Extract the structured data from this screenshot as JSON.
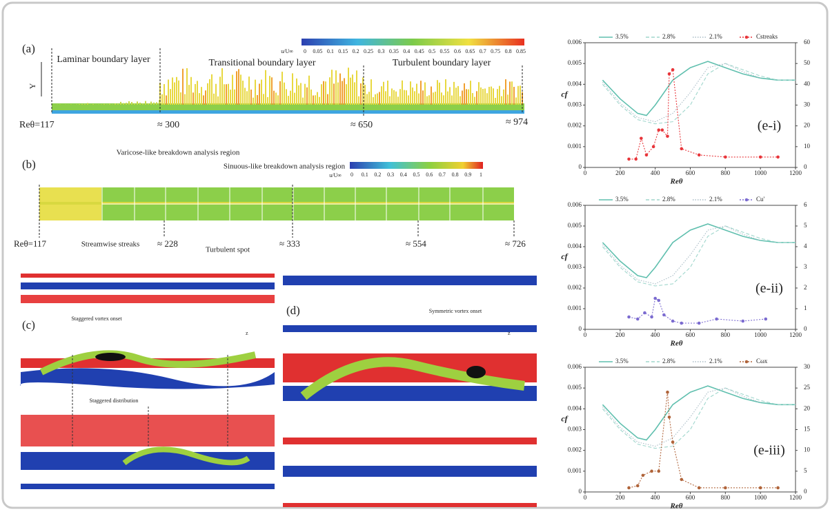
{
  "panel_a": {
    "label": "(a)",
    "axis_label": "Y",
    "regions": [
      "Laminar boundary layer",
      "Transitional boundary layer",
      "Turbulent boundary layer"
    ],
    "colorbar_label": "u/U∞",
    "colorbar_ticks": [
      0,
      0.05,
      0.1,
      0.15,
      0.2,
      0.25,
      0.3,
      0.35,
      0.4,
      0.45,
      0.5,
      0.55,
      0.6,
      0.65,
      0.7,
      0.75,
      0.8,
      0.85
    ],
    "stations": [
      "Reθ=117",
      "≈ 300",
      "≈ 650",
      "≈ 974"
    ]
  },
  "panel_b": {
    "label": "(b)",
    "annotations": [
      "Varicose-like breakdown analysis region",
      "Sinuous-like breakdown analysis region",
      "Streamwise streaks",
      "Turbulent spot"
    ],
    "colorbar_label": "u/U∞",
    "colorbar_ticks": [
      0,
      0.1,
      0.2,
      0.3,
      0.4,
      0.5,
      0.6,
      0.7,
      0.8,
      0.9,
      1
    ],
    "stations": [
      "Reθ=117",
      "≈ 228",
      "≈ 333",
      "≈ 554",
      "≈ 726"
    ]
  },
  "panel_c": {
    "label": "(c)",
    "annotations": [
      "Staggered vortex onset",
      "Staggered distribution"
    ],
    "axis_label": "z"
  },
  "panel_d": {
    "label": "(d)",
    "annotations": [
      "Symmetric vortex onset"
    ],
    "axis_label": "z"
  },
  "charts": [
    {
      "type": "line",
      "label": "(e-i)",
      "xlabel": "Reθ",
      "ylabel": "cf",
      "xlim": [
        0,
        1200
      ],
      "xticks": [
        0,
        200,
        400,
        600,
        800,
        1000,
        1200
      ],
      "ylim": [
        0,
        0.006
      ],
      "yticks": [
        0,
        0.001,
        0.002,
        0.003,
        0.004,
        0.005,
        0.006
      ],
      "y2lim": [
        0,
        60
      ],
      "y2ticks": [
        0,
        10,
        20,
        30,
        40,
        50,
        60
      ],
      "series": [
        {
          "name": "3.5%",
          "color": "#5fbfae",
          "style": "solid",
          "x": [
            100,
            200,
            300,
            350,
            400,
            500,
            600,
            700,
            800,
            900,
            1000,
            1100,
            1200
          ],
          "values": [
            0.0042,
            0.0033,
            0.0026,
            0.0025,
            0.003,
            0.0042,
            0.0048,
            0.0051,
            0.0048,
            0.0045,
            0.0043,
            0.0042,
            0.0042
          ]
        },
        {
          "name": "2.8%",
          "color": "#9fd6cc",
          "style": "dashed",
          "x": [
            100,
            200,
            300,
            400,
            500,
            600,
            700,
            800,
            900,
            1000,
            1100,
            1200
          ],
          "values": [
            0.004,
            0.003,
            0.0023,
            0.0021,
            0.0022,
            0.003,
            0.0045,
            0.005,
            0.0047,
            0.0044,
            0.0042,
            0.0042
          ]
        },
        {
          "name": "2.1%",
          "color": "#a9bcc6",
          "style": "dotted",
          "x": [
            100,
            200,
            300,
            400,
            500,
            600,
            700,
            800,
            900,
            1000
          ],
          "values": [
            0.0041,
            0.0031,
            0.0024,
            0.0022,
            0.0026,
            0.0036,
            0.0048,
            0.005,
            0.0046,
            0.0043
          ]
        },
        {
          "name": "Cstreaks",
          "color": "#e8353a",
          "style": "marker",
          "axis": "y2",
          "x": [
            250,
            290,
            320,
            350,
            390,
            420,
            440,
            470,
            480,
            500,
            550,
            650,
            800,
            1000,
            1100
          ],
          "values": [
            4,
            4,
            14,
            6,
            10,
            18,
            18,
            15,
            45,
            47,
            9,
            6,
            5,
            5,
            5
          ]
        }
      ]
    },
    {
      "type": "line",
      "label": "(e-ii)",
      "xlabel": "Reθ",
      "ylabel": "cf",
      "xlim": [
        0,
        1200
      ],
      "xticks": [
        0,
        200,
        400,
        600,
        800,
        1000,
        1200
      ],
      "ylim": [
        0,
        0.006
      ],
      "yticks": [
        0,
        0.001,
        0.002,
        0.003,
        0.004,
        0.005,
        0.006
      ],
      "y2lim": [
        0,
        6
      ],
      "y2ticks": [
        0,
        1,
        2,
        3,
        4,
        5,
        6
      ],
      "series": [
        {
          "name": "3.5%",
          "color": "#5fbfae",
          "style": "solid",
          "x": [
            100,
            200,
            300,
            350,
            400,
            500,
            600,
            700,
            800,
            900,
            1000,
            1100,
            1200
          ],
          "values": [
            0.0042,
            0.0033,
            0.0026,
            0.0025,
            0.003,
            0.0042,
            0.0048,
            0.0051,
            0.0048,
            0.0045,
            0.0043,
            0.0042,
            0.0042
          ]
        },
        {
          "name": "2.8%",
          "color": "#9fd6cc",
          "style": "dashed",
          "x": [
            100,
            200,
            300,
            400,
            500,
            600,
            700,
            800,
            900,
            1000,
            1100,
            1200
          ],
          "values": [
            0.004,
            0.003,
            0.0023,
            0.0021,
            0.0022,
            0.003,
            0.0045,
            0.005,
            0.0047,
            0.0044,
            0.0042,
            0.0042
          ]
        },
        {
          "name": "2.1%",
          "color": "#a9bcc6",
          "style": "dotted",
          "x": [
            100,
            200,
            300,
            400,
            500,
            600,
            700,
            800,
            900,
            1000
          ],
          "values": [
            0.0041,
            0.0031,
            0.0024,
            0.0022,
            0.0026,
            0.0036,
            0.0048,
            0.005,
            0.0046,
            0.0043
          ]
        },
        {
          "name": "Cu'",
          "color": "#7b6bd0",
          "style": "marker",
          "axis": "y2",
          "x": [
            250,
            300,
            340,
            380,
            400,
            420,
            450,
            500,
            550,
            650,
            750,
            900,
            1030
          ],
          "values": [
            0.6,
            0.5,
            0.8,
            0.6,
            1.5,
            1.4,
            0.7,
            0.4,
            0.3,
            0.3,
            0.5,
            0.4,
            0.5
          ]
        }
      ]
    },
    {
      "type": "line",
      "label": "(e-iii)",
      "xlabel": "Reθ",
      "ylabel": "cf",
      "xlim": [
        0,
        1200
      ],
      "xticks": [
        0,
        200,
        400,
        600,
        800,
        1000,
        1200
      ],
      "ylim": [
        0,
        0.006
      ],
      "yticks": [
        0,
        0.001,
        0.002,
        0.003,
        0.004,
        0.005,
        0.006
      ],
      "y2lim": [
        0,
        30
      ],
      "y2ticks": [
        0,
        5,
        10,
        15,
        20,
        25,
        30
      ],
      "series": [
        {
          "name": "3.5%",
          "color": "#5fbfae",
          "style": "solid",
          "x": [
            100,
            200,
            300,
            350,
            400,
            500,
            600,
            700,
            800,
            900,
            1000,
            1100,
            1200
          ],
          "values": [
            0.0042,
            0.0033,
            0.0026,
            0.0025,
            0.003,
            0.0042,
            0.0048,
            0.0051,
            0.0048,
            0.0045,
            0.0043,
            0.0042,
            0.0042
          ]
        },
        {
          "name": "2.8%",
          "color": "#9fd6cc",
          "style": "dashed",
          "x": [
            100,
            200,
            300,
            400,
            500,
            600,
            700,
            800,
            900,
            1000,
            1100,
            1200
          ],
          "values": [
            0.004,
            0.003,
            0.0023,
            0.0021,
            0.0022,
            0.003,
            0.0045,
            0.005,
            0.0047,
            0.0044,
            0.0042,
            0.0042
          ]
        },
        {
          "name": "2.1%",
          "color": "#a9bcc6",
          "style": "dotted",
          "x": [
            100,
            200,
            300,
            400,
            500,
            600,
            700,
            800,
            900,
            1000
          ],
          "values": [
            0.0041,
            0.0031,
            0.0024,
            0.0022,
            0.0026,
            0.0036,
            0.0048,
            0.005,
            0.0046,
            0.0043
          ]
        },
        {
          "name": "Cωx",
          "color": "#b0643a",
          "style": "marker",
          "axis": "y2",
          "x": [
            250,
            300,
            330,
            380,
            420,
            470,
            480,
            500,
            550,
            650,
            800,
            1000,
            1100
          ],
          "values": [
            1,
            1.5,
            4,
            5,
            5,
            24,
            18,
            12,
            3,
            1,
            1,
            1,
            1
          ]
        }
      ]
    }
  ]
}
